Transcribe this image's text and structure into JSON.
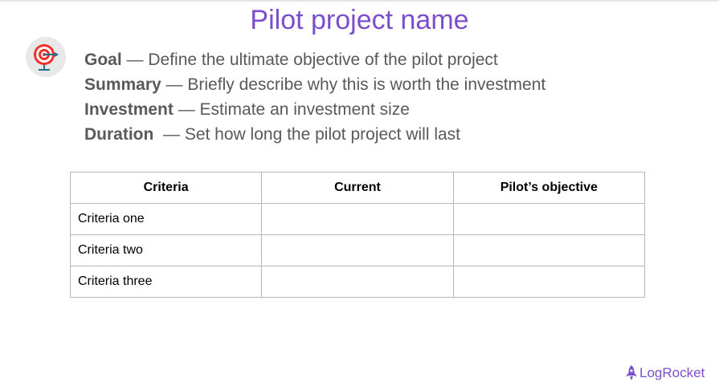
{
  "title": "Pilot project name",
  "items": [
    {
      "label": "Goal",
      "text": " — Define the ultimate objective of the pilot project"
    },
    {
      "label": "Summary",
      "text": " — Briefly describe why this is worth the investment"
    },
    {
      "label": "Investment",
      "text": " — Estimate an investment size"
    },
    {
      "label": "Duration",
      "text": "  — Set how long the pilot project will last"
    }
  ],
  "table": {
    "headers": [
      "Criteria",
      "Current",
      "Pilot’s objective"
    ],
    "rows": [
      [
        "Criteria one",
        "",
        ""
      ],
      [
        "Criteria two",
        "",
        ""
      ],
      [
        "Criteria three",
        "",
        ""
      ]
    ]
  },
  "logo": "LogRocket",
  "icons": {
    "goal": "target-icon",
    "logo": "rocket-icon"
  },
  "colors": {
    "title": "#7b4fcb",
    "text": "#595959"
  }
}
